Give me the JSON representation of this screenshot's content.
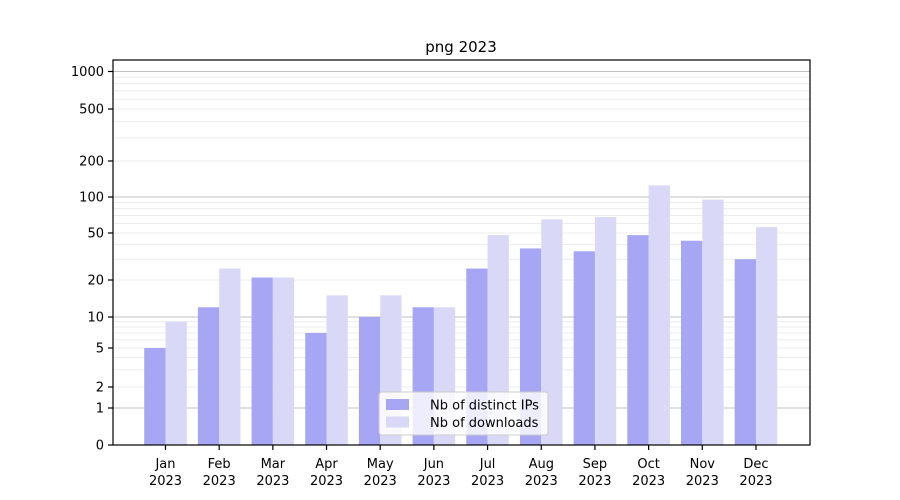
{
  "chart_data": {
    "type": "bar",
    "title": "png 2023",
    "categories": [
      "Jan 2023",
      "Feb 2023",
      "Mar 2023",
      "Apr 2023",
      "May 2023",
      "Jun 2023",
      "Jul 2023",
      "Aug 2023",
      "Sep 2023",
      "Oct 2023",
      "Nov 2023",
      "Dec 2023"
    ],
    "series": [
      {
        "name": "Nb of distinct IPs",
        "color": "#a6a6f4",
        "values": [
          5,
          12,
          21,
          7,
          10,
          12,
          25,
          37,
          35,
          48,
          43,
          30
        ]
      },
      {
        "name": "Nb of downloads",
        "color": "#d9d9f7",
        "values": [
          9,
          25,
          21,
          15,
          15,
          12,
          48,
          65,
          68,
          125,
          95,
          56
        ]
      }
    ],
    "xlabel": "",
    "ylabel": "",
    "y_scale": "symlog",
    "y_ticks": [
      0,
      1,
      2,
      5,
      10,
      20,
      50,
      100,
      200,
      500,
      1000
    ],
    "ylim": [
      0,
      1400
    ],
    "grid": true,
    "legend": {
      "position": "lower-center",
      "labels": [
        "Nb of distinct IPs",
        "Nb of downloads"
      ]
    }
  },
  "colors": {
    "background": "#ffffff",
    "axis": "#000000",
    "major_grid": "#c0c0c0",
    "minor_grid": "#ececec",
    "legend_border": "#cccccc",
    "legend_background": "rgba(255,255,255,0.8)"
  }
}
